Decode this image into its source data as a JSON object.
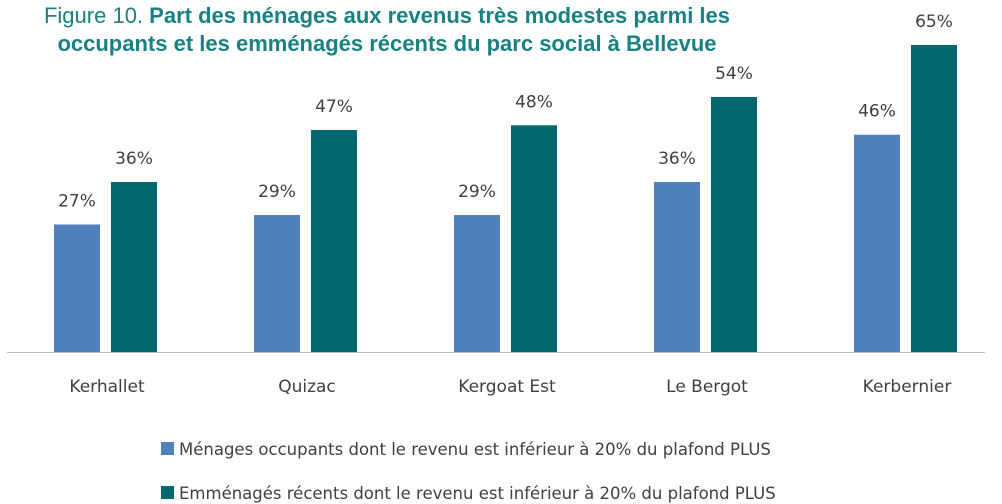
{
  "chart_data": {
    "type": "bar",
    "title": {
      "label": "Figure 10.",
      "text": "Part des ménages aux revenus très modestes parmi les occupants et les emménagés récents du parc social à Bellevue"
    },
    "categories": [
      "Kerhallet",
      "Quizac",
      "Kergoat Est",
      "Le Bergot",
      "Kerbernier"
    ],
    "series": [
      {
        "name": "Ménages occupants dont le revenu est inférieur à 20% du plafond PLUS",
        "color": "#4f81bd",
        "values": [
          27,
          29,
          29,
          36,
          46
        ],
        "value_labels": [
          "27%",
          "29%",
          "29%",
          "36%",
          "46%"
        ]
      },
      {
        "name": "Emménagés récents dont le revenu est inférieur à 20% du plafond PLUS",
        "color": "#00686e",
        "values": [
          36,
          47,
          48,
          54,
          65
        ],
        "value_labels": [
          "36%",
          "47%",
          "48%",
          "54%",
          "65%"
        ]
      }
    ],
    "legend": "bottom"
  }
}
